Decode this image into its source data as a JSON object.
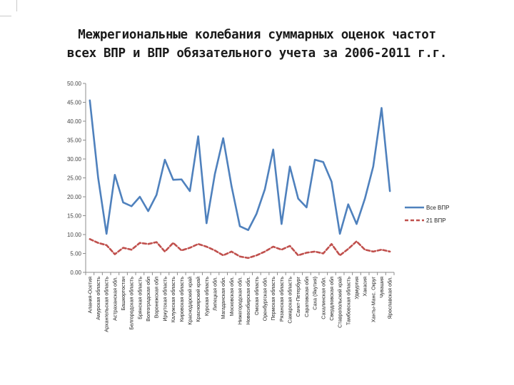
{
  "title_line1": "Межрегиональные колебания суммарных оценок частот",
  "title_line2": "всех ВПР и ВПР обязательного учета за 2006-2011 г.г.",
  "chart_data": {
    "type": "line",
    "title": "Межрегиональные колебания суммарных оценок частот всех ВПР и ВПР обязательного учета за 2006-2011 г.г.",
    "xlabel": "",
    "ylabel": "",
    "ylim": [
      0,
      50
    ],
    "yticks": [
      "0.00",
      "5.00",
      "10.00",
      "15.00",
      "20.00",
      "25.00",
      "30.00",
      "35.00",
      "40.00",
      "45.00",
      "50.00"
    ],
    "grid": false,
    "legend_position": "right",
    "categories": [
      "Алания-Осетия",
      "Амурская область",
      "Архангельская область",
      "Астраханская обл.",
      "Башкортостан",
      "Белгородская область",
      "Брянская область",
      "Волгоградская обл",
      "Воронежская обл",
      "Иркутская область",
      "Калужская область",
      "Кировская область",
      "Краснодарский край",
      "Красноярский край",
      "Курская область",
      "Липецкая обл.",
      "Магаданская обл.",
      "Московская обл.",
      "Нижегородская обл.",
      "Новосибирская обл.",
      "Омская область",
      "Оренбургская обл.",
      "Пермская область",
      "Рязанская область",
      "Самарская область",
      "Санкт-Петербург",
      "Саратовская обл",
      "Саха (Якутия)",
      "Сахалинская обл.",
      "Свердловская обл",
      "Ставропольский край",
      "Тамбовская область",
      "Удмуртия",
      "Хакасия",
      "Ханты-Манс. Округ",
      "Чувашия",
      "Ярославская обл."
    ],
    "series": [
      {
        "name": "Все ВПР",
        "color": "#4f81bd",
        "values": [
          45.5,
          25.0,
          10.2,
          25.8,
          18.5,
          17.5,
          20.0,
          16.2,
          20.5,
          29.8,
          24.5,
          24.6,
          21.5,
          36.0,
          13.0,
          26.0,
          35.5,
          22.8,
          12.2,
          11.2,
          15.5,
          22.0,
          32.5,
          12.8,
          28.0,
          19.5,
          17.2,
          29.8,
          29.2,
          24.0,
          10.2,
          18.0,
          12.8,
          19.5,
          28.0,
          43.5,
          21.5
        ]
      },
      {
        "name": "21 ВПР",
        "color": "#c0504d",
        "values": [
          8.8,
          7.8,
          7.2,
          4.8,
          6.5,
          6.0,
          7.8,
          7.5,
          8.0,
          5.5,
          7.8,
          5.8,
          6.5,
          7.5,
          6.8,
          5.8,
          4.5,
          5.5,
          4.2,
          3.8,
          4.5,
          5.5,
          6.8,
          6.0,
          7.0,
          4.5,
          5.2,
          5.5,
          5.0,
          7.5,
          4.5,
          6.2,
          8.2,
          6.0,
          5.5,
          6.0,
          5.5
        ]
      }
    ]
  }
}
